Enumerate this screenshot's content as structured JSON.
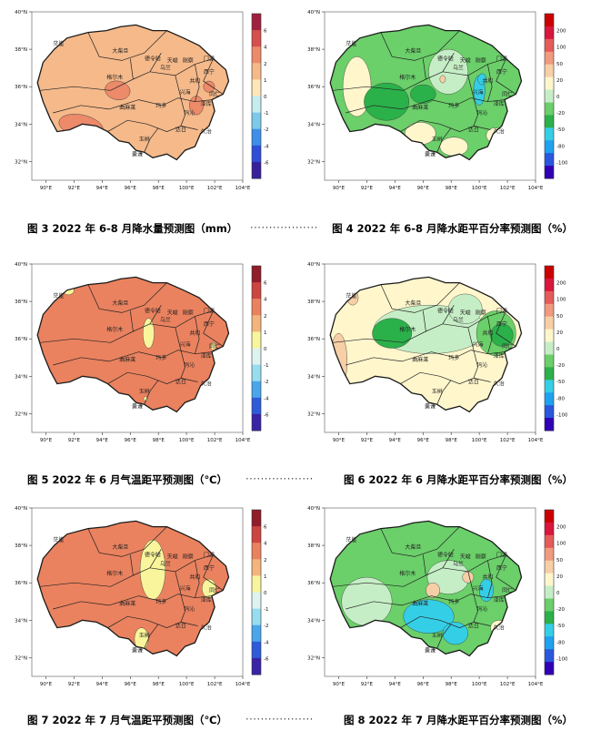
{
  "colors": {
    "precip": [
      "#3a1f9a",
      "#2f4fd8",
      "#3e8fe8",
      "#7cc9ea",
      "#c5ecef",
      "#fde7b8",
      "#f5b98a",
      "#ec8a6a",
      "#d54f4f",
      "#a0213f"
    ],
    "temp": [
      "#3b23a6",
      "#2e5bd9",
      "#4aa6ea",
      "#98dcef",
      "#ddf3f0",
      "#f8f59c",
      "#f4b47e",
      "#ea825f",
      "#cc4540",
      "#8f1d2a"
    ],
    "pct": [
      "#2f00b5",
      "#2a57de",
      "#1fa1f0",
      "#34cfe6",
      "#2bb14a",
      "#6bcf6a",
      "#c6eec6",
      "#fff6cc",
      "#f7cfa6",
      "#f19a7e",
      "#e55a5a",
      "#d9163c",
      "#cc0000"
    ],
    "boundary": "#1a1a1a"
  },
  "place_labels": [
    "德令哈",
    "格尔木",
    "大柴旦",
    "茫崖",
    "曲麻莱",
    "玛多",
    "玉树",
    "西宁",
    "共和",
    "同仁",
    "玛沁",
    "治多",
    "称多",
    "杂多",
    "囊谦",
    "班玛",
    "久治",
    "祁连",
    "门源",
    "刚察",
    "兴海",
    "泽库",
    "河南",
    "达日",
    "甘德",
    "乌兰",
    "都兰",
    "天峻"
  ],
  "charts": [
    {
      "id": "fig3",
      "caption": "图 3 2022 年 6-8 月降水量预测图（mm）",
      "chart_data": {
        "type": "heatmap",
        "x_ticks": [
          "90°E",
          "92°E",
          "94°E",
          "96°E",
          "98°E",
          "100°E",
          "102°E",
          "104°E"
        ],
        "y_ticks": [
          "40°N",
          "38°N",
          "36°N",
          "34°N",
          "32°N"
        ],
        "colorbar_ticks": [
          "6",
          "4",
          "2",
          "1",
          "0",
          "-1",
          "-2",
          "-4",
          "-6"
        ],
        "xlim": [
          89,
          104
        ],
        "ylim": [
          31,
          40
        ]
      }
    },
    {
      "id": "fig4",
      "caption": "图 4 2022 年 6-8 月降水距平百分率预测图（%）",
      "chart_data": {
        "type": "heatmap",
        "x_ticks": [
          "90°E",
          "92°E",
          "94°E",
          "96°E",
          "98°E",
          "100°E",
          "102°E",
          "104°E"
        ],
        "y_ticks": [
          "40°N",
          "38°N",
          "36°N",
          "34°N",
          "32°N"
        ],
        "colorbar_ticks": [
          "200",
          "100",
          "50",
          "20",
          "0",
          "-20",
          "-50",
          "-80",
          "-100"
        ],
        "xlim": [
          89,
          104
        ],
        "ylim": [
          31,
          40
        ]
      }
    },
    {
      "id": "fig5",
      "caption": "图 5 2022 年 6 月气温距平预测图（℃）",
      "chart_data": {
        "type": "heatmap",
        "x_ticks": [
          "90°E",
          "92°E",
          "94°E",
          "96°E",
          "98°E",
          "100°E",
          "102°E",
          "104°E"
        ],
        "y_ticks": [
          "40°N",
          "38°N",
          "36°N",
          "34°N",
          "32°N"
        ],
        "colorbar_ticks": [
          "6",
          "4",
          "2",
          "1",
          "0",
          "-1",
          "-2",
          "-4",
          "-6"
        ],
        "xlim": [
          89,
          104
        ],
        "ylim": [
          31,
          40
        ]
      }
    },
    {
      "id": "fig6",
      "caption": "图 6 2022 年 6 月降水距平百分率预测图（%）",
      "chart_data": {
        "type": "heatmap",
        "x_ticks": [
          "90°E",
          "92°E",
          "94°E",
          "96°E",
          "98°E",
          "100°E",
          "102°E",
          "104°E"
        ],
        "y_ticks": [
          "40°N",
          "38°N",
          "36°N",
          "34°N",
          "32°N"
        ],
        "colorbar_ticks": [
          "200",
          "100",
          "50",
          "20",
          "0",
          "-20",
          "-50",
          "-80",
          "-100"
        ],
        "xlim": [
          89,
          104
        ],
        "ylim": [
          31,
          40
        ]
      }
    },
    {
      "id": "fig7",
      "caption": "图 7 2022 年 7 月气温距平预测图（℃）",
      "chart_data": {
        "type": "heatmap",
        "x_ticks": [
          "90°E",
          "92°E",
          "94°E",
          "96°E",
          "98°E",
          "100°E",
          "102°E",
          "104°E"
        ],
        "y_ticks": [
          "40°N",
          "38°N",
          "36°N",
          "34°N",
          "32°N"
        ],
        "colorbar_ticks": [
          "6",
          "4",
          "2",
          "1",
          "0",
          "-1",
          "-2",
          "-4",
          "-6"
        ],
        "xlim": [
          89,
          104
        ],
        "ylim": [
          31,
          40
        ]
      }
    },
    {
      "id": "fig8",
      "caption": "图 8 2022 年 7 月降水距平百分率预测图（%）",
      "chart_data": {
        "type": "heatmap",
        "x_ticks": [
          "90°E",
          "92°E",
          "94°E",
          "96°E",
          "98°E",
          "100°E",
          "102°E",
          "104°E"
        ],
        "y_ticks": [
          "40°N",
          "38°N",
          "36°N",
          "34°N",
          "32°N"
        ],
        "colorbar_ticks": [
          "200",
          "100",
          "50",
          "20",
          "0",
          "-20",
          "-50",
          "-80",
          "-100"
        ],
        "xlim": [
          89,
          104
        ],
        "ylim": [
          31,
          40
        ]
      }
    }
  ]
}
